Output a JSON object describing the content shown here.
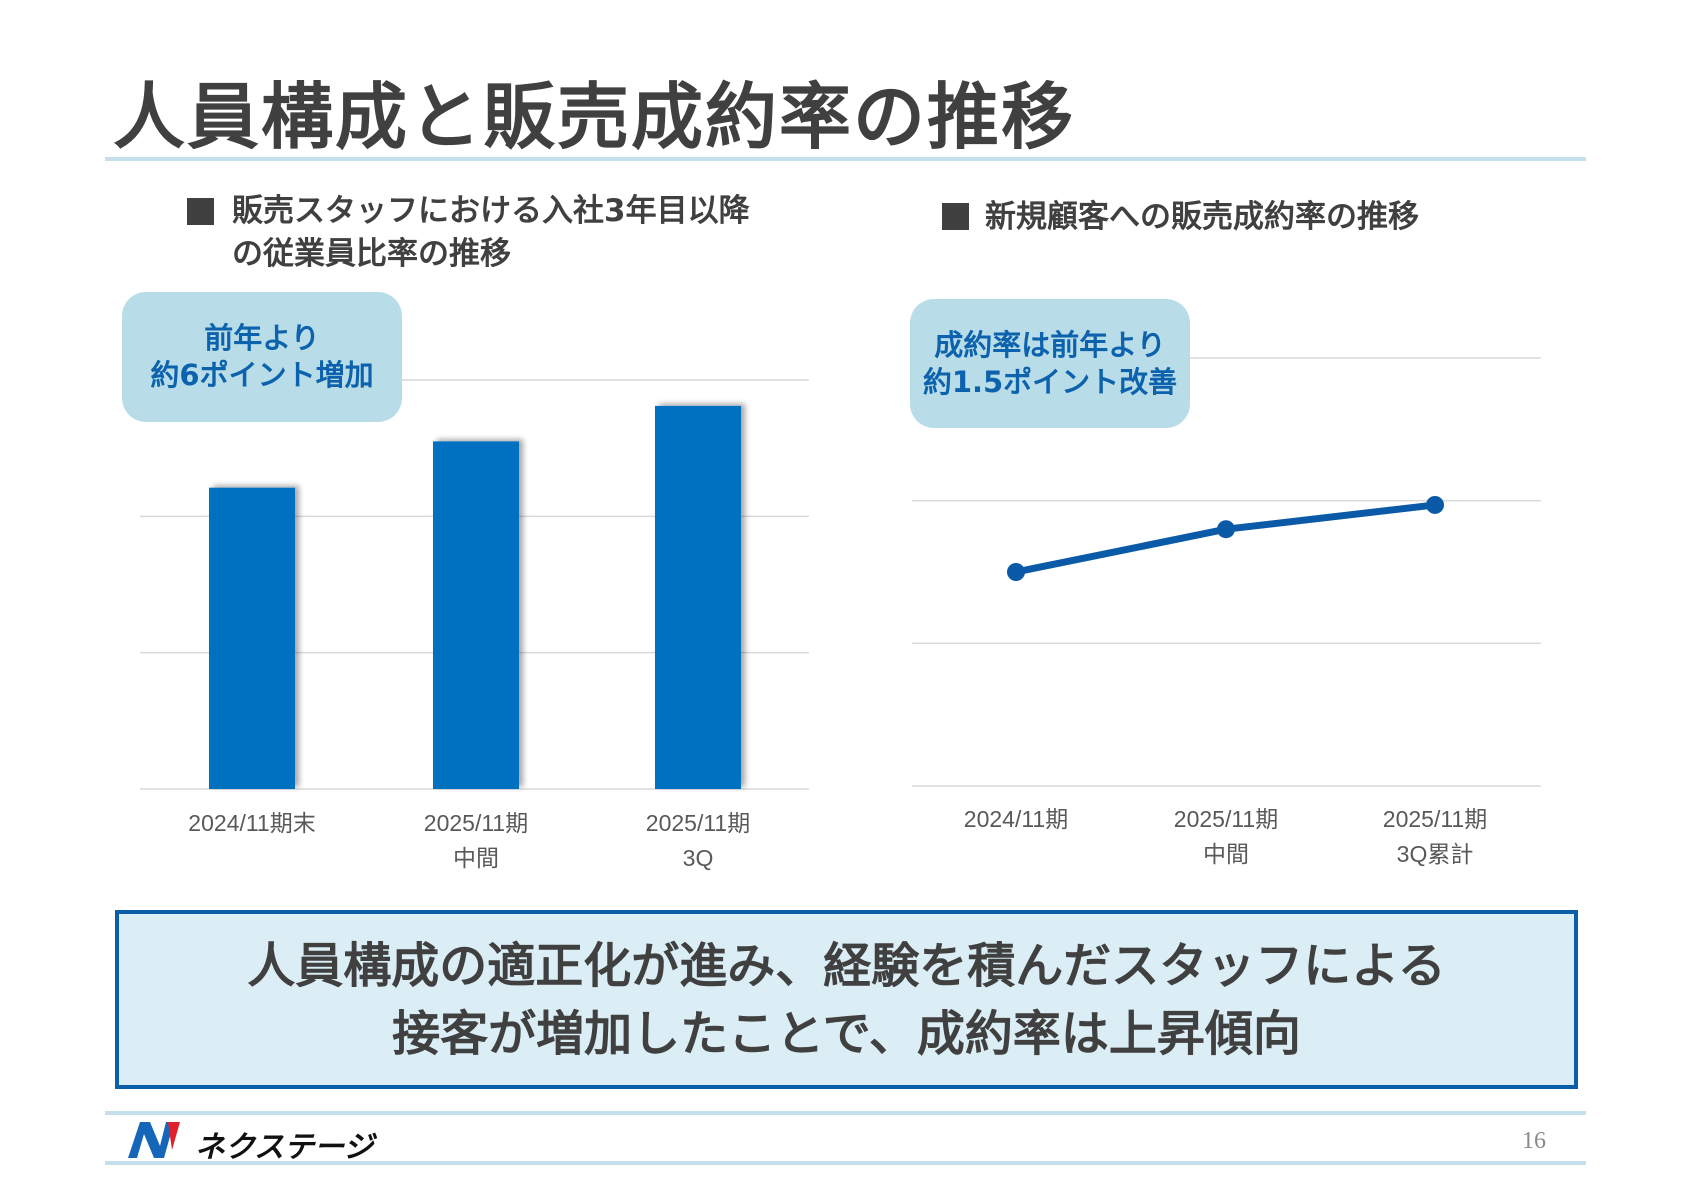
{
  "title": "人員構成と販売成約率の推移",
  "colors": {
    "bar": "#0070c0",
    "line": "#0b5aa8",
    "callout_bg": "#b8dde8",
    "callout_text": "#0d62ad",
    "rule": "#c5e0ea",
    "box_border": "#0b5fa8",
    "box_bg": "#dbeef5"
  },
  "chart_data": [
    {
      "type": "bar",
      "title_lines": [
        "販売スタッフにおける入社3年目以降",
        "の従業員比率の推移"
      ],
      "callout": [
        "前年より",
        "約6ポイント増加"
      ],
      "categories": [
        [
          "2024/11期末"
        ],
        [
          "2025/11期",
          "中間"
        ],
        [
          "2025/11期",
          "3Q"
        ]
      ],
      "values": [
        2.21,
        2.55,
        2.81
      ],
      "value_note_units": "gridline steps (no axis labels shown)",
      "ylim": [
        0,
        3
      ],
      "grid": true,
      "y_tick_labels_shown": false
    },
    {
      "type": "line",
      "title_lines": [
        "新規顧客への販売成約率の推移"
      ],
      "callout": [
        "成約率は前年より",
        "約1.5ポイント改善"
      ],
      "categories": [
        [
          "2024/11期"
        ],
        [
          "2025/11期",
          "中間"
        ],
        [
          "2025/11期",
          "3Q累計"
        ]
      ],
      "values": [
        1.5,
        1.8,
        1.97
      ],
      "ylim": [
        0,
        3
      ],
      "grid": true,
      "y_tick_labels_shown": false
    }
  ],
  "conclusion": [
    "人員構成の適正化が進み、経験を積んだスタッフによる",
    "接客が増加したことで、成約率は上昇傾向"
  ],
  "footer": {
    "logo": "ネクステージ",
    "page_number": "16"
  }
}
